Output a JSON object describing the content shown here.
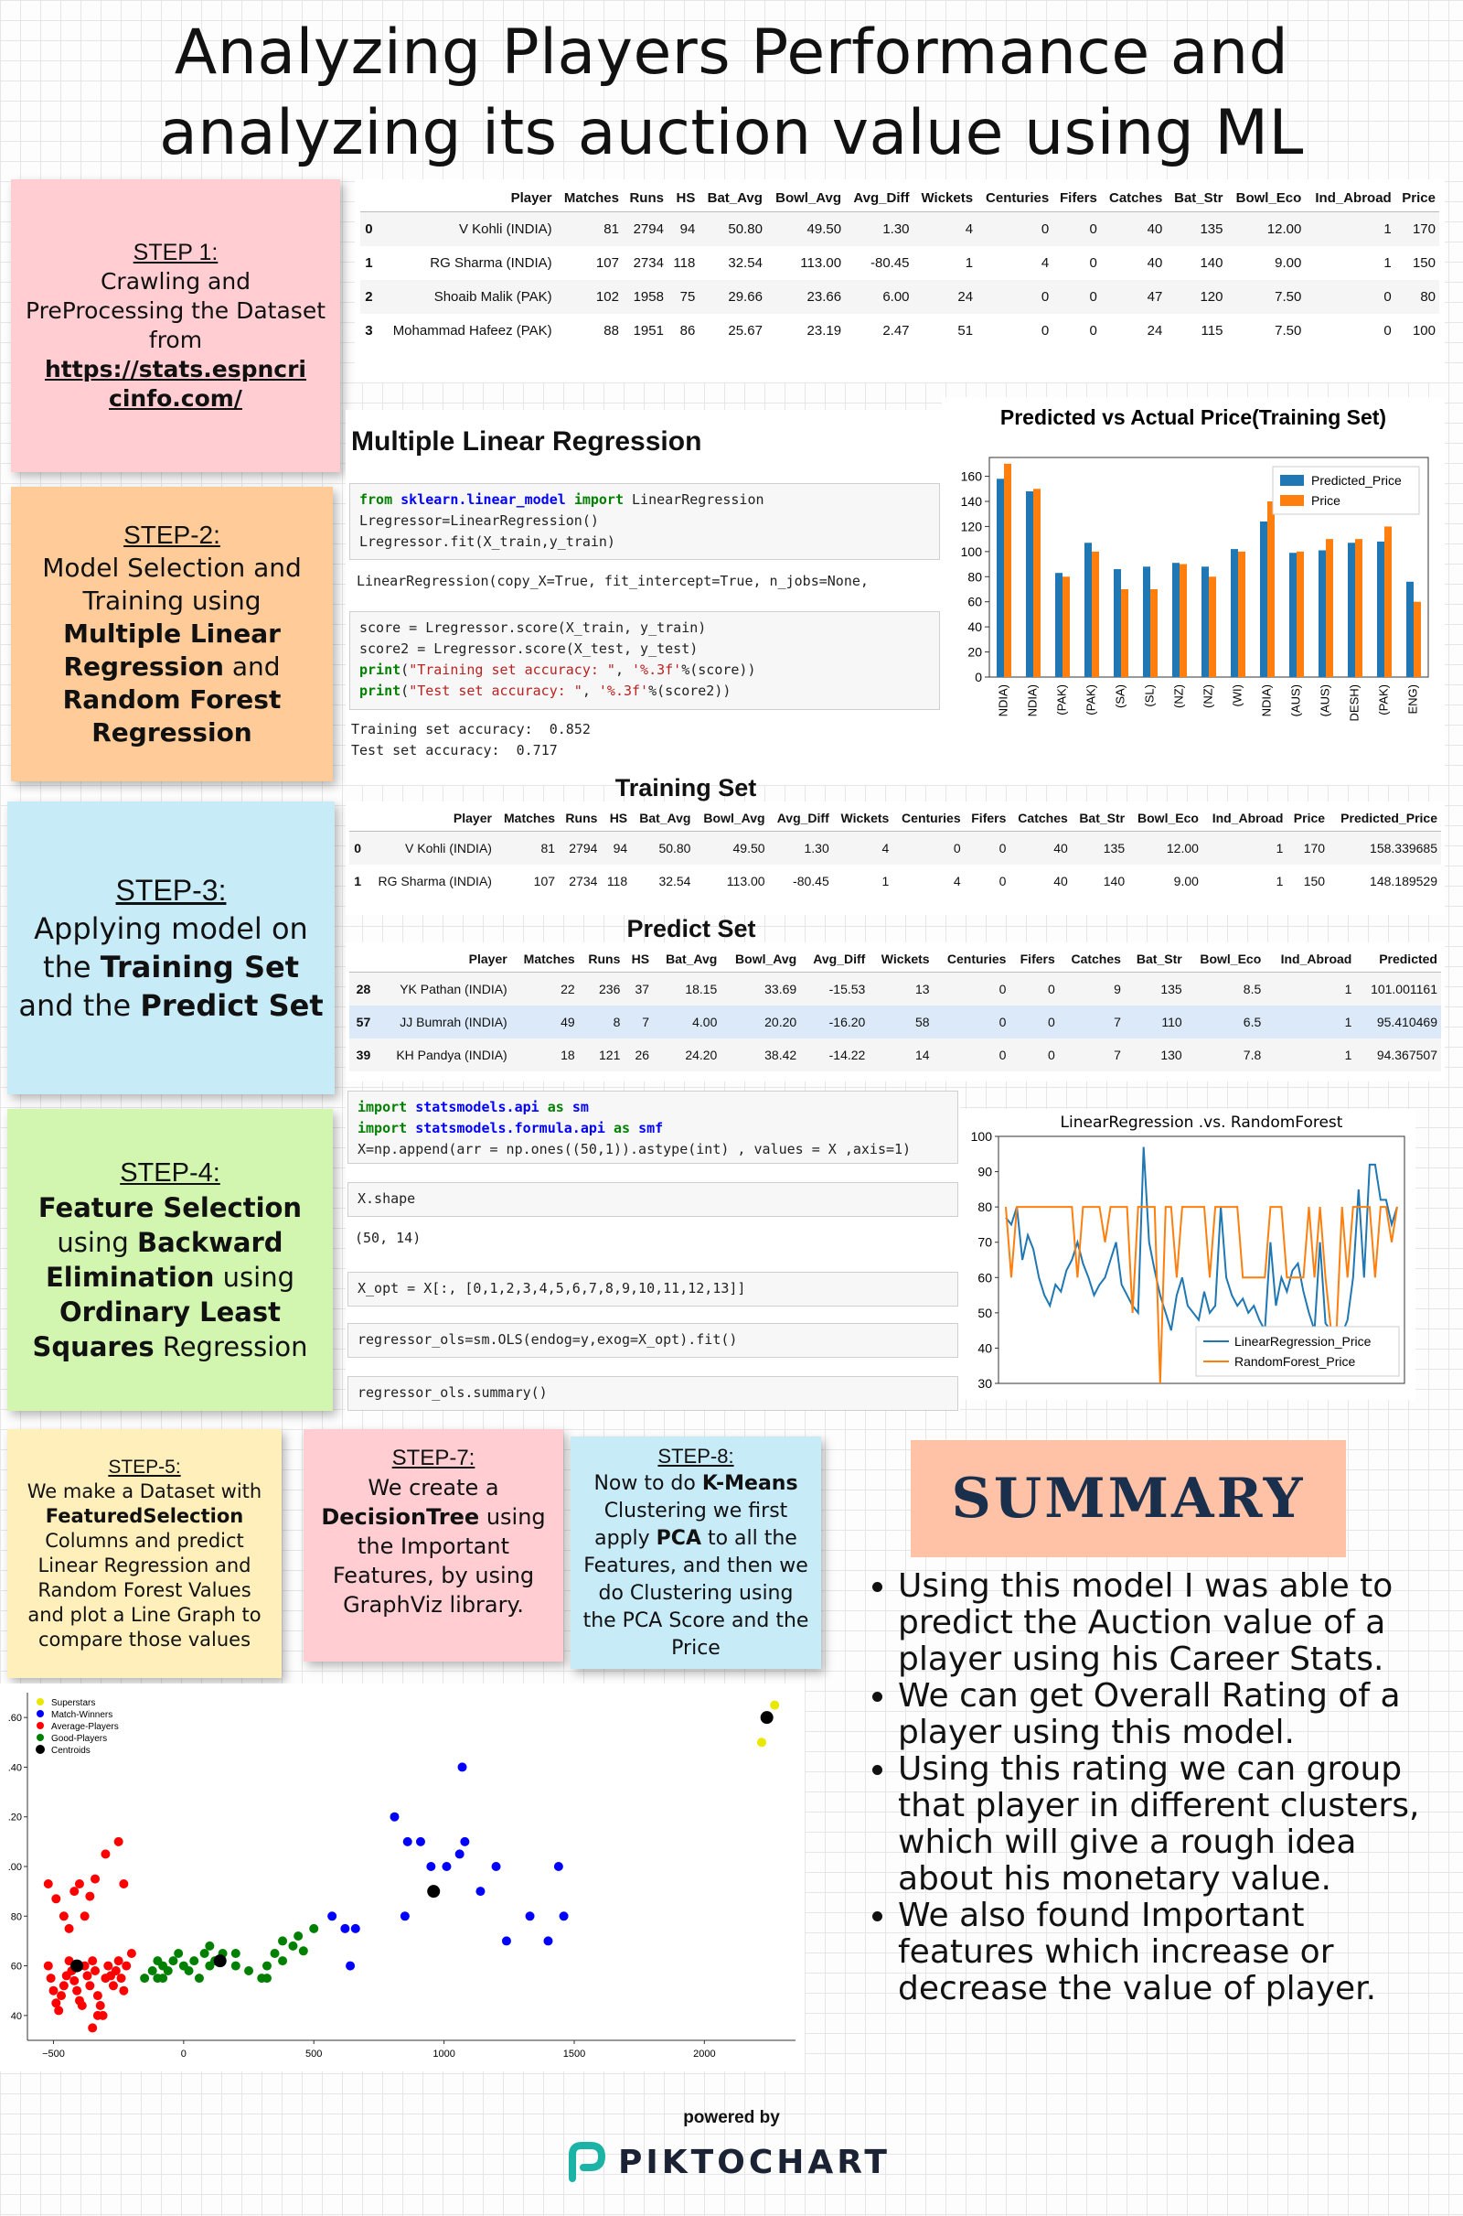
{
  "title": "Analyzing Players Performance and analyzing its auction value using ML",
  "steps": {
    "s1_head": "STEP 1:",
    "s1_text": "Crawling and PreProcessing the Dataset from",
    "s1_link": "https://stats.espncricinfo.com/",
    "s2_head": "STEP-2:",
    "s2_a": "Model Selection and Training using ",
    "s2_b": "Multiple Linear Regression",
    "s2_c": " and ",
    "s2_d": "Random Forest Regression",
    "s3_head": "STEP-3:",
    "s3_a": "Applying model on the ",
    "s3_b": "Training Set",
    "s3_c": " and the ",
    "s3_d": "Predict Set",
    "s4_head": "STEP-4:",
    "s4_a": "Feature Selection",
    "s4_b": " using ",
    "s4_c": "Backward Elimination",
    "s4_d": " using ",
    "s4_e": "Ordinary Least Squares",
    "s4_f": " Regression",
    "s5_head": "STEP-5:",
    "s5_a": "We make a Dataset with ",
    "s5_b": "FeaturedSelection",
    "s5_c": " Columns and predict Linear Regression and Random Forest Values and plot a Line Graph to compare those values",
    "s7_head": "STEP-7:",
    "s7_a": "We create a ",
    "s7_b": "DecisionTree",
    "s7_c": " using the Important Features, by using GraphViz library.",
    "s8_head": "STEP-8:",
    "s8_a": "Now to do ",
    "s8_b": "K-Means",
    "s8_c": " Clustering we first apply ",
    "s8_d": "PCA",
    "s8_e": " to all the Features, and then we do Clustering using the PCA Score and the Price"
  },
  "table_top": {
    "headers": [
      "",
      "Player",
      "Matches",
      "Runs",
      "HS",
      "Bat_Avg",
      "Bowl_Avg",
      "Avg_Diff",
      "Wickets",
      "Centuries",
      "Fifers",
      "Catches",
      "Bat_Str",
      "Bowl_Eco",
      "Ind_Abroad",
      "Price"
    ],
    "rows": [
      [
        "0",
        "V Kohli (INDIA)",
        "81",
        "2794",
        "94",
        "50.80",
        "49.50",
        "1.30",
        "4",
        "0",
        "0",
        "40",
        "135",
        "12.00",
        "1",
        "170"
      ],
      [
        "1",
        "RG Sharma (INDIA)",
        "107",
        "2734",
        "118",
        "32.54",
        "113.00",
        "-80.45",
        "1",
        "4",
        "0",
        "40",
        "140",
        "9.00",
        "1",
        "150"
      ],
      [
        "2",
        "Shoaib Malik (PAK)",
        "102",
        "1958",
        "75",
        "29.66",
        "23.66",
        "6.00",
        "24",
        "0",
        "0",
        "47",
        "120",
        "7.50",
        "0",
        "80"
      ],
      [
        "3",
        "Mohammad Hafeez (PAK)",
        "88",
        "1951",
        "86",
        "25.67",
        "23.19",
        "2.47",
        "51",
        "0",
        "0",
        "24",
        "115",
        "7.50",
        "0",
        "100"
      ]
    ]
  },
  "mlr": {
    "heading": "Multiple Linear Regression",
    "code1_l1_kw1": "from",
    "code1_l1_mod": "sklearn.linear_model",
    "code1_l1_kw2": "import",
    "code1_l1_rest": "LinearRegression",
    "code1_l2": "Lregressor=LinearRegression()",
    "code1_l3": "Lregressor.fit(X_train,y_train)",
    "out1": "LinearRegression(copy_X=True, fit_intercept=True, n_jobs=None,",
    "code2_l1": "score = Lregressor.score(X_train, y_train)",
    "code2_l2": "score2 = Lregressor.score(X_test, y_test)",
    "code2_l3_fn": "print",
    "code2_l3_s1": "\"Training set accuracy: \"",
    "code2_l3_s2": "'%.3f'",
    "code2_l3_rest": "%(score))",
    "code2_l4_fn": "print",
    "code2_l4_s1": "\"Test set accuracy: \"",
    "code2_l4_s2": "'%.3f'",
    "code2_l4_rest": "%(score2))",
    "out2_l1": "Training set accuracy:  0.852",
    "out2_l2": "Test set accuracy:  0.717"
  },
  "chart_data": [
    {
      "type": "bar",
      "title": "Predicted vs Actual Price(Training Set)",
      "categories": [
        "NDIA)",
        "NDIA)",
        "(PAK)",
        "(PAK)",
        "(SA)",
        "(SL)",
        "(NZ)",
        "(NZ)",
        "(WI)",
        "NDIA)",
        "(AUS)",
        "(AUS)",
        "DESH)",
        "(PAK)",
        "ENG)"
      ],
      "series": [
        {
          "name": "Predicted_Price",
          "color": "#1f77b4",
          "values": [
            158,
            148,
            83,
            107,
            86,
            88,
            91,
            88,
            102,
            124,
            99,
            101,
            107,
            108,
            76
          ]
        },
        {
          "name": "Price",
          "color": "#ff7f0e",
          "values": [
            170,
            150,
            80,
            100,
            70,
            70,
            90,
            80,
            100,
            140,
            100,
            110,
            110,
            120,
            60
          ]
        }
      ],
      "yticks": [
        "0",
        "20",
        "40",
        "60",
        "80",
        "100",
        "120",
        "140",
        "160"
      ],
      "ylim": [
        0,
        175
      ],
      "legend": "top-right"
    },
    {
      "type": "line",
      "title": "LinearRegression .vs. RandomForest",
      "yticks": [
        "30",
        "40",
        "50",
        "60",
        "70",
        "80",
        "90",
        "100"
      ],
      "ylim": [
        30,
        100
      ],
      "legend": "bottom-right",
      "series": [
        {
          "name": "LinearRegression_Price",
          "color": "#1f77b4",
          "values": [
            77,
            75,
            80,
            65,
            72,
            68,
            60,
            55,
            52,
            58,
            56,
            62,
            65,
            70,
            64,
            60,
            55,
            58,
            60,
            65,
            70,
            58,
            55,
            52,
            50,
            97,
            70,
            62,
            55,
            50,
            45,
            55,
            60,
            52,
            50,
            48,
            56,
            50,
            52,
            80,
            60,
            55,
            52,
            54,
            50,
            52,
            48,
            45,
            70,
            52,
            60,
            56,
            62,
            64,
            56,
            50,
            45,
            70,
            47,
            45,
            42,
            44,
            48,
            60,
            85,
            60,
            92,
            92,
            82,
            82,
            75,
            80
          ]
        },
        {
          "name": "RandomForest_Price",
          "color": "#ff7f0e",
          "values": [
            80,
            60,
            80,
            80,
            80,
            80,
            80,
            80,
            80,
            80,
            80,
            80,
            80,
            60,
            80,
            80,
            80,
            80,
            70,
            80,
            80,
            80,
            80,
            50,
            80,
            80,
            80,
            80,
            30,
            80,
            80,
            60,
            80,
            80,
            80,
            80,
            80,
            60,
            80,
            80,
            80,
            80,
            80,
            60,
            60,
            60,
            60,
            60,
            80,
            80,
            80,
            60,
            60,
            60,
            60,
            80,
            60,
            80,
            60,
            45,
            45,
            80,
            60,
            80,
            80,
            80,
            80,
            60,
            80,
            80,
            70,
            80
          ]
        }
      ]
    },
    {
      "type": "scatter",
      "xticks": [
        "−500",
        "0",
        "500",
        "1000",
        "1500",
        "2000"
      ],
      "xlim": [
        -600,
        2350
      ],
      "yticks": [
        "40",
        "60",
        "80",
        ".00",
        ".20",
        ".40",
        ".60"
      ],
      "ylim": [
        30,
        170
      ],
      "legend": "top-left",
      "series": [
        {
          "name": "Superstars",
          "color": "#e8e800",
          "points": [
            [
              2270,
              165
            ],
            [
              2220,
              150
            ]
          ]
        },
        {
          "name": "Match-Winners",
          "color": "#0000ff",
          "points": [
            [
              810,
              120
            ],
            [
              1070,
              140
            ],
            [
              860,
              110
            ],
            [
              910,
              110
            ],
            [
              950,
              100
            ],
            [
              1010,
              100
            ],
            [
              1060,
              105
            ],
            [
              1080,
              110
            ],
            [
              1140,
              90
            ],
            [
              1200,
              100
            ],
            [
              1330,
              80
            ],
            [
              1400,
              70
            ],
            [
              1440,
              100
            ],
            [
              1460,
              80
            ],
            [
              1240,
              70
            ],
            [
              570,
              80
            ],
            [
              620,
              75
            ],
            [
              660,
              75
            ],
            [
              640,
              60
            ],
            [
              850,
              80
            ]
          ]
        },
        {
          "name": "Average-Players",
          "color": "#ff0000",
          "points": [
            [
              -520,
              93
            ],
            [
              -490,
              87
            ],
            [
              -460,
              80
            ],
            [
              -440,
              75
            ],
            [
              -420,
              90
            ],
            [
              -400,
              93
            ],
            [
              -380,
              80
            ],
            [
              -360,
              88
            ],
            [
              -340,
              95
            ],
            [
              -300,
              105
            ],
            [
              -250,
              110
            ],
            [
              -230,
              93
            ],
            [
              -520,
              60
            ],
            [
              -510,
              55
            ],
            [
              -500,
              50
            ],
            [
              -490,
              45
            ],
            [
              -480,
              42
            ],
            [
              -470,
              48
            ],
            [
              -460,
              52
            ],
            [
              -450,
              56
            ],
            [
              -440,
              62
            ],
            [
              -430,
              58
            ],
            [
              -420,
              54
            ],
            [
              -410,
              50
            ],
            [
              -400,
              46
            ],
            [
              -390,
              44
            ],
            [
              -380,
              60
            ],
            [
              -370,
              56
            ],
            [
              -360,
              52
            ],
            [
              -350,
              62
            ],
            [
              -340,
              58
            ],
            [
              -330,
              48
            ],
            [
              -320,
              44
            ],
            [
              -310,
              40
            ],
            [
              -300,
              55
            ],
            [
              -290,
              60
            ],
            [
              -280,
              56
            ],
            [
              -270,
              52
            ],
            [
              -260,
              58
            ],
            [
              -250,
              62
            ],
            [
              -240,
              55
            ],
            [
              -230,
              50
            ],
            [
              -220,
              60
            ],
            [
              -200,
              65
            ],
            [
              -350,
              35
            ],
            [
              -330,
              40
            ]
          ]
        },
        {
          "name": "Good-Players",
          "color": "#008000",
          "points": [
            [
              -150,
              55
            ],
            [
              -100,
              55
            ],
            [
              -80,
              60
            ],
            [
              -60,
              58
            ],
            [
              -40,
              62
            ],
            [
              -20,
              65
            ],
            [
              0,
              60
            ],
            [
              20,
              58
            ],
            [
              40,
              62
            ],
            [
              60,
              55
            ],
            [
              80,
              65
            ],
            [
              100,
              60
            ],
            [
              120,
              62
            ],
            [
              150,
              65
            ],
            [
              200,
              60
            ],
            [
              250,
              58
            ],
            [
              300,
              55
            ],
            [
              320,
              60
            ],
            [
              350,
              65
            ],
            [
              380,
              70
            ],
            [
              420,
              68
            ],
            [
              440,
              72
            ],
            [
              460,
              66
            ],
            [
              500,
              75
            ],
            [
              380,
              62
            ],
            [
              320,
              55
            ],
            [
              200,
              65
            ],
            [
              100,
              68
            ],
            [
              -80,
              55
            ],
            [
              -120,
              58
            ],
            [
              -100,
              62
            ]
          ]
        },
        {
          "name": "Centroids",
          "color": "#000000",
          "points": [
            [
              -410,
              60
            ],
            [
              140,
              62
            ],
            [
              960,
              90
            ],
            [
              2240,
              160
            ]
          ]
        }
      ]
    }
  ],
  "train_label": "Training Set",
  "table_train": {
    "headers": [
      "",
      "Player",
      "Matches",
      "Runs",
      "HS",
      "Bat_Avg",
      "Bowl_Avg",
      "Avg_Diff",
      "Wickets",
      "Centuries",
      "Fifers",
      "Catches",
      "Bat_Str",
      "Bowl_Eco",
      "Ind_Abroad",
      "Price",
      "Predicted_Price"
    ],
    "rows": [
      [
        "0",
        "V Kohli (INDIA)",
        "81",
        "2794",
        "94",
        "50.80",
        "49.50",
        "1.30",
        "4",
        "0",
        "0",
        "40",
        "135",
        "12.00",
        "1",
        "170",
        "158.339685"
      ],
      [
        "1",
        "RG Sharma (INDIA)",
        "107",
        "2734",
        "118",
        "32.54",
        "113.00",
        "-80.45",
        "1",
        "4",
        "0",
        "40",
        "140",
        "9.00",
        "1",
        "150",
        "148.189529"
      ]
    ]
  },
  "predict_label": "Predict Set",
  "table_predict": {
    "headers": [
      "",
      "Player",
      "Matches",
      "Runs",
      "HS",
      "Bat_Avg",
      "Bowl_Avg",
      "Avg_Diff",
      "Wickets",
      "Centuries",
      "Fifers",
      "Catches",
      "Bat_Str",
      "Bowl_Eco",
      "Ind_Abroad",
      "Predicted"
    ],
    "rows": [
      [
        "28",
        "YK Pathan (INDIA)",
        "22",
        "236",
        "37",
        "18.15",
        "33.69",
        "-15.53",
        "13",
        "0",
        "0",
        "9",
        "135",
        "8.5",
        "1",
        "101.001161"
      ],
      [
        "57",
        "JJ Bumrah (INDIA)",
        "49",
        "8",
        "7",
        "4.00",
        "20.20",
        "-16.20",
        "58",
        "0",
        "0",
        "7",
        "110",
        "6.5",
        "1",
        "95.410469"
      ],
      [
        "39",
        "KH Pandya (INDIA)",
        "18",
        "121",
        "26",
        "24.20",
        "38.42",
        "-14.22",
        "14",
        "0",
        "0",
        "7",
        "130",
        "7.8",
        "1",
        "94.367507"
      ]
    ]
  },
  "ols": {
    "l1_kw": "import",
    "l1_mod": "statsmodels.api",
    "l1_as": "as",
    "l1_alias": "sm",
    "l2_kw": "import",
    "l2_mod": "statsmodels.formula.api",
    "l2_as": "as",
    "l2_alias": "smf",
    "l3": "X=np.append(arr = np.ones((50,1)).astype(int) , values = X ,axis=1)",
    "c2": "X.shape",
    "o2": "(50, 14)",
    "c3": "X_opt = X[:, [0,1,2,3,4,5,6,7,8,9,10,11,12,13]]",
    "c4": "regressor_ols=sm.OLS(endog=y,exog=X_opt).fit()",
    "c5": "regressor_ols.summary()"
  },
  "summary": {
    "heading": "SUMMARY",
    "bullets": [
      "Using this model I was able to predict the Auction value of a player using his Career Stats.",
      "We can get Overall Rating of a player using this model.",
      "Using this rating we can group that player in different clusters, which will give a rough idea about his monetary value.",
      "We also found Important features which increase or decrease the value of player."
    ]
  },
  "footer": {
    "powered": "powered by",
    "brand": "PIKTOCHART"
  },
  "colors": {
    "note_pink": "#ffcdd2",
    "note_orange": "#ffcc99",
    "note_blue": "#c8ebf8",
    "note_green": "#d2f5b0",
    "note_yellow": "#fff0bb",
    "summary_bg": "#ffc2a6",
    "summary_text": "#1a2f4b",
    "brand_teal": "#1bb3a6"
  }
}
